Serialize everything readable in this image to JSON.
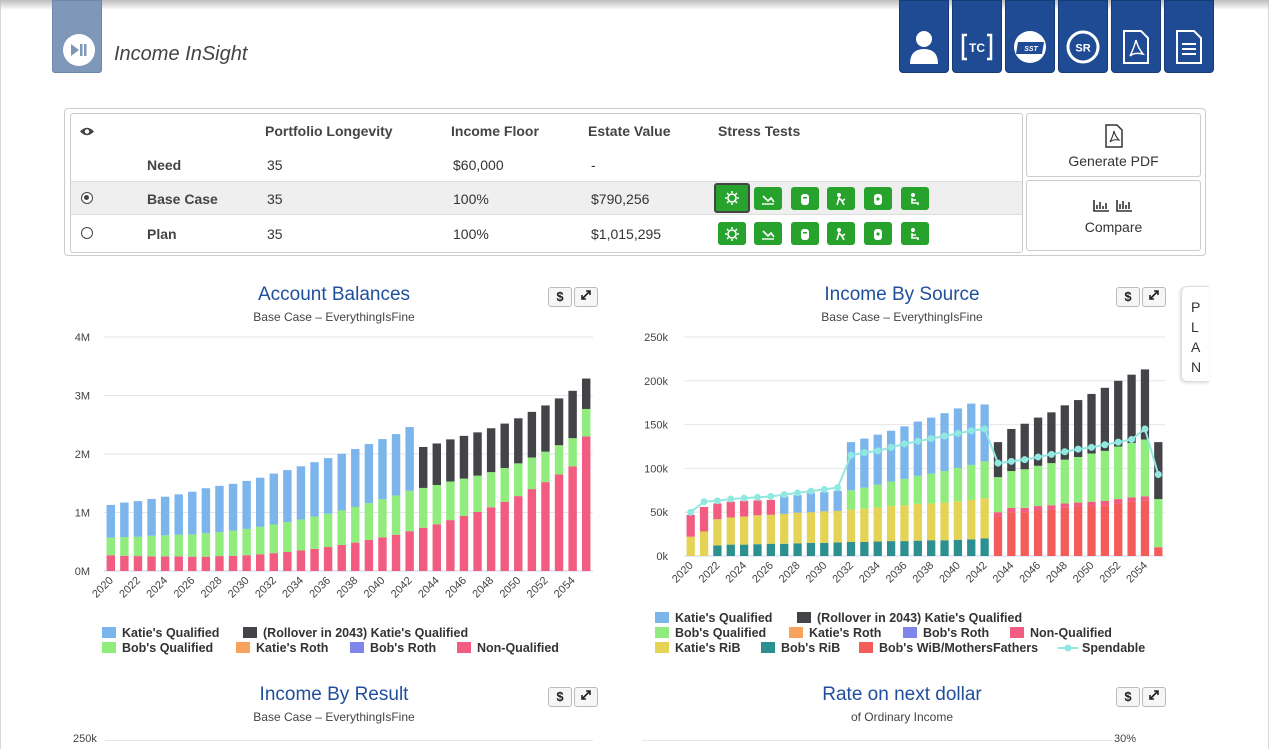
{
  "app": {
    "title": "Income InSight"
  },
  "header": {
    "buttons": [
      {
        "name": "profile-button",
        "icon": "user-icon",
        "label": ""
      },
      {
        "name": "tc-button",
        "icon": "tc-icon",
        "label": "TC"
      },
      {
        "name": "ssa-button",
        "icon": "ssa-card-icon",
        "label": "SST"
      },
      {
        "name": "sr-button",
        "icon": "sr-icon",
        "label": "SR"
      },
      {
        "name": "pdf-button",
        "icon": "pdf-icon",
        "label": ""
      },
      {
        "name": "document-button",
        "icon": "document-icon",
        "label": ""
      }
    ]
  },
  "summary": {
    "headers": {
      "longevity": "Portfolio Longevity",
      "floor": "Income Floor",
      "estate": "Estate Value",
      "stress": "Stress Tests"
    },
    "rows": [
      {
        "name": "Need",
        "longevity": "35",
        "floor": "$60,000",
        "estate": "-"
      },
      {
        "name": "Base Case",
        "longevity": "35",
        "floor": "100%",
        "estate": "$790,256"
      },
      {
        "name": "Plan",
        "longevity": "35",
        "floor": "100%",
        "estate": "$1,015,295"
      }
    ],
    "selected_row": "Base Case",
    "stress_tests": [
      "everything-is-fine",
      "market-crash",
      "long-life",
      "early-death-spouse-1",
      "long-term-care",
      "early-death-spouse-2"
    ],
    "generate_pdf": "Generate PDF",
    "compare": "Compare"
  },
  "plan_tab": [
    "P",
    "L",
    "A",
    "N"
  ],
  "colors": {
    "katie_q": "#7cb5ec",
    "rollover": "#434348",
    "bob_q": "#90ed7d",
    "katie_roth": "#f7a35c",
    "bob_roth": "#8085e9",
    "nonq": "#f15c80",
    "katie_rib": "#e4d354",
    "bob_rib": "#2b908f",
    "bob_wib": "#f45b5b",
    "spendable": "#91e8e1"
  },
  "charts": {
    "account_balances": {
      "title": "Account Balances",
      "subtitle": "Base Case – EverythingIsFine",
      "legend": [
        "Katie's Qualified",
        "(Rollover in 2043) Katie's Qualified",
        "Bob's Qualified",
        "Katie's Roth",
        "Bob's Roth",
        "Non-Qualified"
      ]
    },
    "income_by_source": {
      "title": "Income By Source",
      "subtitle": "Base Case – EverythingIsFine",
      "legend": [
        "Katie's Qualified",
        "(Rollover in 2043) Katie's Qualified",
        "Bob's Qualified",
        "Katie's Roth",
        "Bob's Roth",
        "Non-Qualified",
        "Katie's RiB",
        "Bob's RiB",
        "Bob's WiB/MothersFathers",
        "Spendable"
      ]
    },
    "income_by_result": {
      "title": "Income By Result",
      "subtitle": "Base Case – EverythingIsFine",
      "y_top_label": "250k"
    },
    "rate_next_dollar": {
      "title": "Rate on next dollar",
      "subtitle": "of Ordinary Income",
      "y_top_label": "30%"
    },
    "dollar_label": "$"
  },
  "chart_data": [
    {
      "type": "bar",
      "stacked": true,
      "title": "Account Balances",
      "subtitle": "Base Case – EverythingIsFine",
      "ylim": [
        0,
        4000000
      ],
      "yticks": [
        "0M",
        "1M",
        "2M",
        "3M",
        "4M"
      ],
      "x_tick_labels": [
        "2020",
        "2022",
        "2024",
        "2026",
        "2028",
        "2030",
        "2032",
        "2034",
        "2036",
        "2038",
        "2040",
        "2042",
        "2044",
        "2046",
        "2048",
        "2050",
        "2052",
        "2054"
      ],
      "categories": [
        2020,
        2021,
        2022,
        2023,
        2024,
        2025,
        2026,
        2027,
        2028,
        2029,
        2030,
        2031,
        2032,
        2033,
        2034,
        2035,
        2036,
        2037,
        2038,
        2039,
        2040,
        2041,
        2042,
        2043,
        2044,
        2045,
        2046,
        2047,
        2048,
        2049,
        2050,
        2051,
        2052,
        2053,
        2054,
        2055
      ],
      "series": [
        {
          "name": "Non-Qualified",
          "color_key": "nonq",
          "values": [
            270000,
            260000,
            255000,
            252000,
            250000,
            250000,
            245000,
            245000,
            255000,
            260000,
            270000,
            285000,
            305000,
            325000,
            350000,
            380000,
            410000,
            445000,
            485000,
            530000,
            575000,
            620000,
            680000,
            740000,
            800000,
            870000,
            940000,
            1010000,
            1090000,
            1180000,
            1280000,
            1400000,
            1520000,
            1650000,
            1790000,
            2300000
          ]
        },
        {
          "name": "Bob's Qualified",
          "color_key": "bob_q",
          "values": [
            300000,
            320000,
            330000,
            350000,
            360000,
            370000,
            380000,
            400000,
            410000,
            430000,
            450000,
            470000,
            490000,
            510000,
            530000,
            550000,
            570000,
            590000,
            610000,
            630000,
            650000,
            670000,
            690000,
            680000,
            670000,
            660000,
            640000,
            620000,
            600000,
            580000,
            560000,
            540000,
            520000,
            500000,
            480000,
            470000
          ]
        },
        {
          "name": "Katie's Qualified",
          "color_key": "katie_q",
          "values": [
            560000,
            590000,
            610000,
            630000,
            660000,
            690000,
            730000,
            770000,
            790000,
            800000,
            820000,
            840000,
            870000,
            890000,
            910000,
            930000,
            950000,
            970000,
            990000,
            1010000,
            1030000,
            1050000,
            1090000,
            0,
            0,
            0,
            0,
            0,
            0,
            0,
            0,
            0,
            0,
            0,
            0,
            0
          ]
        },
        {
          "name": "(Rollover in 2043) Katie's Qualified",
          "color_key": "rollover",
          "values": [
            0,
            0,
            0,
            0,
            0,
            0,
            0,
            0,
            0,
            0,
            0,
            0,
            0,
            0,
            0,
            0,
            0,
            0,
            0,
            0,
            0,
            0,
            0,
            700000,
            710000,
            720000,
            730000,
            740000,
            750000,
            760000,
            770000,
            780000,
            790000,
            800000,
            810000,
            520000
          ]
        },
        {
          "name": "Katie's Roth",
          "color_key": "katie_roth",
          "values": [
            0,
            0,
            0,
            0,
            0,
            0,
            0,
            0,
            0,
            0,
            0,
            0,
            0,
            0,
            0,
            0,
            0,
            0,
            0,
            0,
            0,
            0,
            0,
            0,
            0,
            0,
            0,
            0,
            0,
            0,
            0,
            0,
            0,
            0,
            0,
            0
          ]
        },
        {
          "name": "Bob's Roth",
          "color_key": "bob_roth",
          "values": [
            0,
            0,
            0,
            0,
            0,
            0,
            0,
            0,
            0,
            0,
            0,
            0,
            0,
            0,
            0,
            0,
            0,
            0,
            0,
            0,
            0,
            0,
            0,
            0,
            0,
            0,
            0,
            0,
            0,
            0,
            0,
            0,
            0,
            0,
            0,
            0
          ]
        }
      ]
    },
    {
      "type": "bar",
      "stacked": true,
      "title": "Income By Source",
      "subtitle": "Base Case – EverythingIsFine",
      "ylim": [
        0,
        250000
      ],
      "yticks": [
        "0k",
        "50k",
        "100k",
        "150k",
        "200k",
        "250k"
      ],
      "x_tick_labels": [
        "2020",
        "2022",
        "2024",
        "2026",
        "2028",
        "2030",
        "2032",
        "2034",
        "2036",
        "2038",
        "2040",
        "2042",
        "2044",
        "2046",
        "2048",
        "2050",
        "2052",
        "2054"
      ],
      "categories": [
        2020,
        2021,
        2022,
        2023,
        2024,
        2025,
        2026,
        2027,
        2028,
        2029,
        2030,
        2031,
        2032,
        2033,
        2034,
        2035,
        2036,
        2037,
        2038,
        2039,
        2040,
        2041,
        2042,
        2043,
        2044,
        2045,
        2046,
        2047,
        2048,
        2049,
        2050,
        2051,
        2052,
        2053,
        2054,
        2055
      ],
      "series": [
        {
          "name": "Bob's RiB",
          "color_key": "bob_rib",
          "values": [
            0,
            0,
            12000,
            13000,
            13000,
            13500,
            14000,
            14000,
            14500,
            15000,
            15000,
            15500,
            16000,
            16000,
            16500,
            17000,
            17000,
            17500,
            18000,
            18000,
            18500,
            19000,
            20000,
            0,
            0,
            0,
            0,
            0,
            0,
            0,
            0,
            0,
            0,
            0,
            0,
            0
          ]
        },
        {
          "name": "Katie's RiB",
          "color_key": "katie_rib",
          "values": [
            22000,
            28000,
            30000,
            31000,
            32000,
            33000,
            33000,
            34000,
            35000,
            35000,
            36000,
            36000,
            37000,
            38000,
            39000,
            40000,
            41000,
            42000,
            42000,
            43000,
            44000,
            45000,
            46000,
            0,
            0,
            0,
            0,
            0,
            0,
            0,
            0,
            0,
            0,
            0,
            0,
            0
          ]
        },
        {
          "name": "Bob's WiB/MothersFathers",
          "color_key": "bob_wib",
          "values": [
            0,
            0,
            0,
            0,
            0,
            0,
            0,
            0,
            0,
            0,
            0,
            0,
            0,
            0,
            0,
            0,
            0,
            0,
            0,
            0,
            0,
            0,
            0,
            45000,
            50000,
            50000,
            52000,
            53000,
            55000,
            56000,
            57000,
            58000,
            60000,
            62000,
            63000,
            10000
          ]
        },
        {
          "name": "Non-Qualified",
          "color_key": "nonq",
          "values": [
            25000,
            28000,
            18000,
            18000,
            18000,
            17000,
            17000,
            0,
            0,
            0,
            0,
            0,
            0,
            0,
            0,
            0,
            0,
            0,
            0,
            0,
            0,
            0,
            0,
            5000,
            5000,
            5000,
            5000,
            5000,
            5000,
            5000,
            5000,
            5000,
            5000,
            5000,
            5000,
            0
          ]
        },
        {
          "name": "Bob's Qualified",
          "color_key": "bob_q",
          "values": [
            0,
            0,
            0,
            0,
            0,
            0,
            0,
            0,
            0,
            0,
            0,
            0,
            22000,
            24000,
            26000,
            28000,
            30000,
            32000,
            34000,
            36000,
            38000,
            40000,
            42000,
            40000,
            42000,
            44000,
            46000,
            48000,
            50000,
            52000,
            55000,
            57000,
            60000,
            62000,
            65000,
            55000
          ]
        },
        {
          "name": "Katie's Qualified",
          "color_key": "katie_q",
          "values": [
            0,
            0,
            0,
            0,
            0,
            0,
            0,
            20000,
            20000,
            22000,
            22000,
            23000,
            55000,
            56000,
            57000,
            58000,
            60000,
            62000,
            64000,
            66000,
            68000,
            70000,
            65000,
            0,
            0,
            0,
            0,
            0,
            0,
            0,
            0,
            0,
            0,
            0,
            0,
            0
          ]
        },
        {
          "name": "(Rollover in 2043) Katie's Qualified",
          "color_key": "rollover",
          "values": [
            0,
            0,
            0,
            0,
            0,
            0,
            0,
            0,
            0,
            0,
            0,
            0,
            0,
            0,
            0,
            0,
            0,
            0,
            0,
            0,
            0,
            0,
            0,
            40000,
            48000,
            52000,
            55000,
            58000,
            62000,
            65000,
            68000,
            72000,
            75000,
            78000,
            80000,
            65000
          ]
        },
        {
          "name": "Katie's Roth",
          "color_key": "katie_roth",
          "values": [
            0,
            0,
            0,
            0,
            0,
            0,
            0,
            0,
            0,
            0,
            0,
            0,
            0,
            0,
            0,
            0,
            0,
            0,
            0,
            0,
            0,
            0,
            0,
            0,
            0,
            0,
            0,
            0,
            0,
            0,
            0,
            0,
            0,
            0,
            0,
            0
          ]
        },
        {
          "name": "Bob's Roth",
          "color_key": "bob_roth",
          "values": [
            0,
            0,
            0,
            0,
            0,
            0,
            0,
            0,
            0,
            0,
            0,
            0,
            0,
            0,
            0,
            0,
            0,
            0,
            0,
            0,
            0,
            0,
            0,
            0,
            0,
            0,
            0,
            0,
            0,
            0,
            0,
            0,
            0,
            0,
            0,
            0
          ]
        }
      ],
      "line": {
        "name": "Spendable",
        "color_key": "spendable",
        "values": [
          50000,
          62000,
          63000,
          65000,
          66000,
          67000,
          68000,
          70000,
          72000,
          74000,
          76000,
          78000,
          115000,
          118000,
          120000,
          124000,
          128000,
          131000,
          134000,
          137000,
          140000,
          143000,
          145000,
          106000,
          108000,
          110000,
          113000,
          116000,
          119000,
          122000,
          124000,
          127000,
          130000,
          133000,
          145000,
          93000
        ]
      }
    }
  ]
}
